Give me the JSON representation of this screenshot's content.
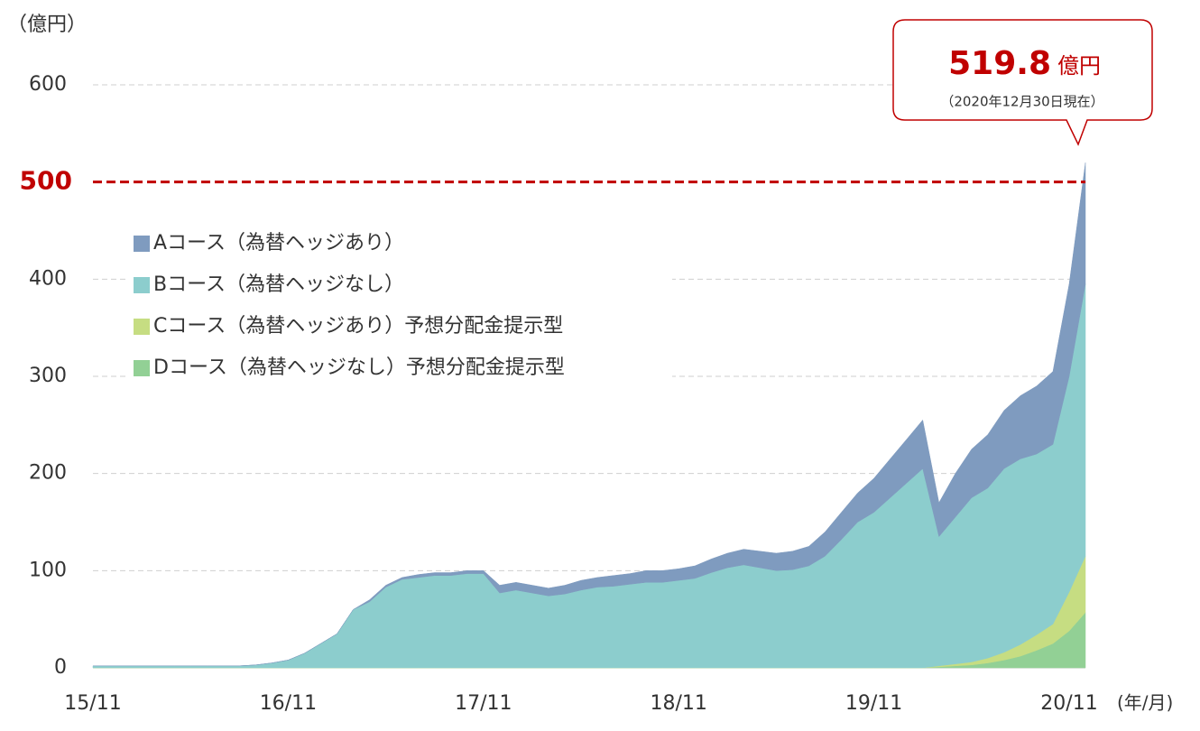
{
  "chart_data": {
    "type": "stacked_area",
    "y_label": "（億円）",
    "x_label": "(年/月)",
    "categories": [
      "15/11",
      null,
      null,
      null,
      null,
      null,
      null,
      null,
      null,
      null,
      null,
      null,
      "16/11",
      null,
      null,
      null,
      null,
      null,
      null,
      null,
      null,
      null,
      null,
      null,
      "17/11",
      null,
      null,
      null,
      null,
      null,
      null,
      null,
      null,
      null,
      null,
      null,
      "18/11",
      null,
      null,
      null,
      null,
      null,
      null,
      null,
      null,
      null,
      null,
      null,
      "19/11",
      null,
      null,
      null,
      null,
      null,
      null,
      null,
      null,
      null,
      null,
      null,
      "20/11",
      null
    ],
    "series": [
      {
        "name": "Dコース（為替ヘッジなし）予想分配金提示型",
        "color": "#92d095",
        "values": [
          0,
          0,
          0,
          0,
          0,
          0,
          0,
          0,
          0,
          0,
          0,
          0,
          0,
          0,
          0,
          0,
          0,
          0,
          0,
          0,
          0,
          0,
          0,
          0,
          0,
          0,
          0,
          0,
          0,
          0,
          0,
          0,
          0,
          0,
          0,
          0,
          0,
          0,
          0,
          0,
          0,
          0,
          0,
          0,
          0,
          0,
          0,
          0,
          0,
          0,
          0,
          0,
          1,
          2,
          3,
          5,
          8,
          12,
          18,
          25,
          38,
          57
        ]
      },
      {
        "name": "Cコース（為替ヘッジあり）予想分配金提示型",
        "color": "#c6dd82",
        "values": [
          0,
          0,
          0,
          0,
          0,
          0,
          0,
          0,
          0,
          0,
          0,
          0,
          0,
          0,
          0,
          0,
          0,
          0,
          0,
          0,
          0,
          0,
          0,
          0,
          0,
          0,
          0,
          0,
          0,
          0,
          0,
          0,
          0,
          0,
          0,
          0,
          0,
          0,
          0,
          0,
          0,
          0,
          0,
          0,
          0,
          0,
          0,
          0,
          0,
          0,
          0,
          0,
          1,
          2,
          3,
          5,
          8,
          12,
          16,
          20,
          40,
          58
        ]
      },
      {
        "name": "Bコース（為替ヘッジなし）",
        "color": "#8ccdcd",
        "values": [
          2,
          2,
          2,
          2,
          2,
          2,
          2,
          2,
          2,
          2,
          3,
          5,
          8,
          15,
          25,
          35,
          60,
          68,
          83,
          91,
          93,
          95,
          95,
          97,
          97,
          77,
          80,
          77,
          74,
          76,
          80,
          83,
          84,
          86,
          88,
          88,
          90,
          92,
          98,
          103,
          106,
          103,
          100,
          101,
          105,
          115,
          132,
          150,
          160,
          175,
          190,
          205,
          133,
          151,
          169,
          175,
          189,
          191,
          186,
          185,
          222,
          280
        ]
      },
      {
        "name": "Aコース（為替ヘッジあり）",
        "color": "#7f9bbf",
        "values": [
          0,
          0,
          0,
          0,
          0,
          0,
          0,
          0,
          0,
          0,
          0,
          0,
          0,
          0,
          0,
          0,
          0,
          2,
          2,
          2,
          3,
          3,
          3,
          3,
          3,
          8,
          8,
          8,
          8,
          9,
          10,
          10,
          11,
          11,
          12,
          12,
          12,
          13,
          14,
          15,
          16,
          17,
          18,
          19,
          20,
          25,
          28,
          30,
          35,
          40,
          45,
          50,
          35,
          45,
          50,
          55,
          60,
          65,
          70,
          75,
          95,
          124.8
        ]
      }
    ],
    "ylim": [
      0,
      600
    ],
    "yticks": [
      0,
      100,
      200,
      300,
      400,
      500,
      600
    ],
    "grid": true,
    "reference_line": {
      "value": 500,
      "color": "#c00000"
    },
    "legend": "upper left",
    "callout": {
      "value": "519.8",
      "unit": "億円",
      "note": "（2020年12月30日現在）"
    }
  }
}
